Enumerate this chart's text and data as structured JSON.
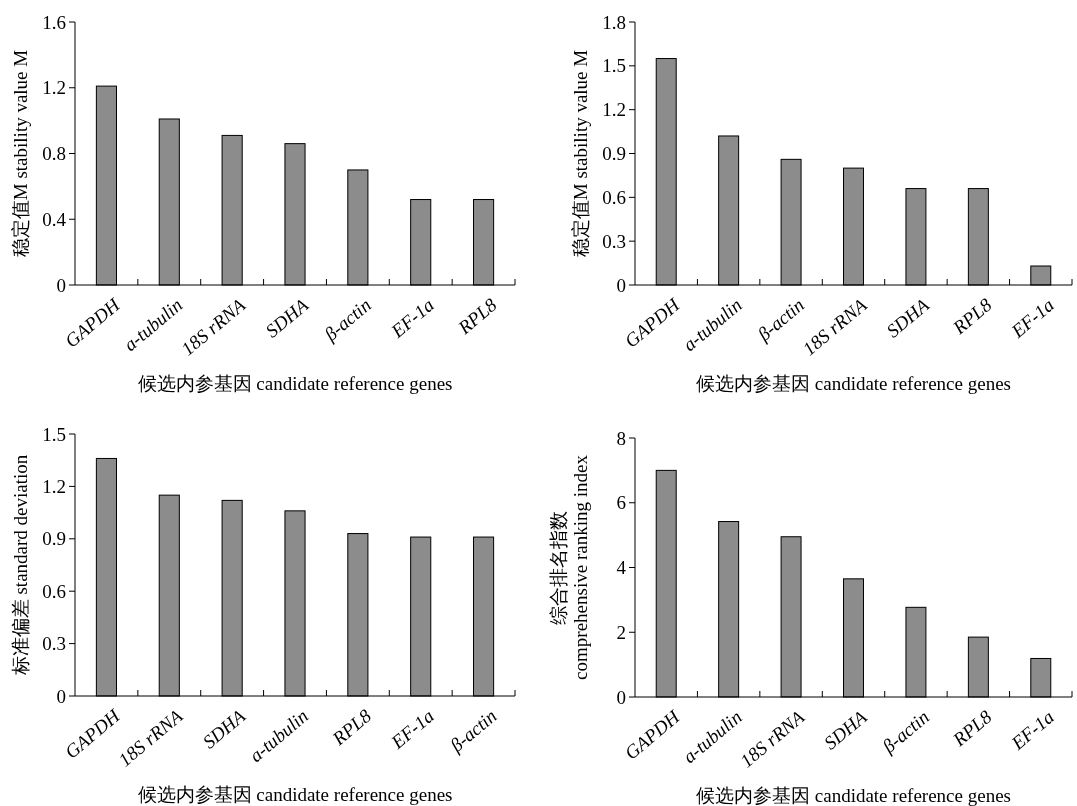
{
  "chart_data": [
    {
      "type": "bar",
      "categories": [
        "GAPDH",
        "a-tubulin",
        "18S rRNA",
        "SDHA",
        "β-actin",
        "EF-1a",
        "RPL8"
      ],
      "values": [
        1.21,
        1.01,
        0.91,
        0.86,
        0.7,
        0.52,
        0.52
      ],
      "color": "#8c8c8c",
      "ylim": [
        0,
        1.6
      ],
      "yticks": [
        0,
        0.4,
        0.8,
        1.2,
        1.6
      ],
      "xlabel": "候选内参基因 candidate reference genes",
      "ylabel": "稳定值M stability value M"
    },
    {
      "type": "bar",
      "categories": [
        "GAPDH",
        "a-tubulin",
        "β-actin",
        "18S rRNA",
        "SDHA",
        "RPL8",
        "EF-1a"
      ],
      "values": [
        1.55,
        1.02,
        0.86,
        0.8,
        0.66,
        0.66,
        0.13
      ],
      "color": "#8c8c8c",
      "ylim": [
        0,
        1.8
      ],
      "yticks": [
        0,
        0.3,
        0.6,
        0.9,
        1.2,
        1.5,
        1.8
      ],
      "xlabel": "候选内参基因 candidate reference genes",
      "ylabel": "稳定值M stability value M"
    },
    {
      "type": "bar",
      "categories": [
        "GAPDH",
        "18S rRNA",
        "SDHA",
        "a-tubulin",
        "RPL8",
        "EF-1a",
        "β-actin"
      ],
      "values": [
        1.36,
        1.15,
        1.12,
        1.06,
        0.93,
        0.91,
        0.91
      ],
      "color": "#8c8c8c",
      "ylim": [
        0,
        1.5
      ],
      "yticks": [
        0,
        0.3,
        0.6,
        0.9,
        1.2,
        1.5
      ],
      "xlabel": "候选内参基因 candidate reference genes",
      "ylabel": "标准偏差 standard deviation"
    },
    {
      "type": "bar",
      "categories": [
        "GAPDH",
        "a-tubulin",
        "18S rRNA",
        "SDHA",
        "β-actin",
        "RPL8",
        "EF-1a"
      ],
      "values": [
        7.0,
        5.42,
        4.95,
        3.65,
        2.77,
        1.85,
        1.19
      ],
      "color": "#8c8c8c",
      "ylim": [
        0,
        8
      ],
      "yticks": [
        0,
        2,
        4,
        6,
        8
      ],
      "xlabel": "候选内参基因 candidate reference genes",
      "ylabel": "综合排名指数\ncomprehensive ranking index"
    }
  ]
}
